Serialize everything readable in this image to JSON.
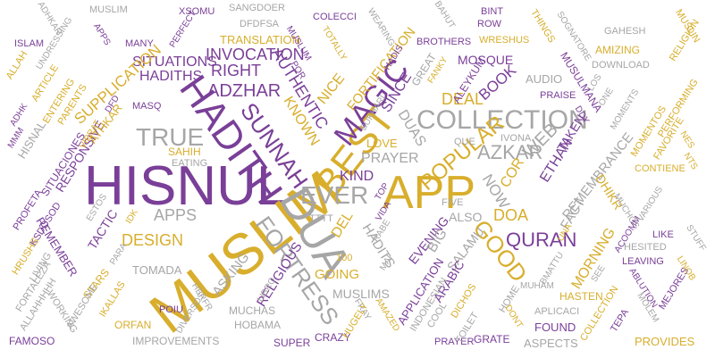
{
  "colors": {
    "gray": "#a6a6a6",
    "gold": "#d8ae2c",
    "purple": "#7a3f98"
  },
  "words": [
    {
      "id": "hisnul",
      "text": "HISNUL",
      "color": "purple"
    },
    {
      "id": "muslim-big",
      "text": "MUSLIM",
      "color": "gold"
    },
    {
      "id": "app-big",
      "text": "APP",
      "color": "gold"
    },
    {
      "id": "hadith",
      "text": "HADITH",
      "color": "purple"
    },
    {
      "id": "dua",
      "text": "DUA",
      "color": "gray"
    },
    {
      "id": "collection",
      "text": "COLLECTION",
      "color": "gray"
    },
    {
      "id": "best",
      "text": "BEST",
      "color": "gold"
    },
    {
      "id": "ever",
      "text": "EVER",
      "color": "gray"
    },
    {
      "id": "true",
      "text": "TRUE",
      "color": "gray"
    },
    {
      "id": "sunnah",
      "text": "SUNNAH",
      "color": "purple"
    },
    {
      "id": "magic",
      "text": "MAGIC",
      "color": "purple"
    },
    {
      "id": "fortress",
      "text": "FORTRESS",
      "color": "gray"
    },
    {
      "id": "azkar",
      "text": "AZKAR",
      "color": "gray"
    },
    {
      "id": "quran",
      "text": "QURAN",
      "color": "purple"
    },
    {
      "id": "good",
      "text": "GOOD",
      "color": "gold"
    },
    {
      "id": "popular",
      "text": "POPULAR",
      "color": "gold"
    },
    {
      "id": "design",
      "text": "DESIGN",
      "color": "gold"
    },
    {
      "id": "apps",
      "text": "APPS",
      "color": "gray"
    },
    {
      "id": "invocation",
      "text": "INVOCATION",
      "color": "purple"
    },
    {
      "id": "situations",
      "text": "SITUATIONS",
      "color": "purple"
    },
    {
      "id": "hadiths",
      "text": "HADITHS",
      "color": "purple"
    },
    {
      "id": "right",
      "text": "RIGHT",
      "color": "purple"
    },
    {
      "id": "adzhar",
      "text": "ADZHAR",
      "color": "purple"
    },
    {
      "id": "authentic",
      "text": "AUTHENTIC",
      "color": "purple"
    },
    {
      "id": "known",
      "text": "KNOWN",
      "color": "gold"
    },
    {
      "id": "nice",
      "text": "NICE",
      "color": "gold"
    },
    {
      "id": "fortification",
      "text": "FORTIFICATION",
      "color": "gold"
    },
    {
      "id": "supplication",
      "text": "SUPPLICATION",
      "color": "gold"
    },
    {
      "id": "translation",
      "text": "TRANSLATION",
      "color": "gold"
    },
    {
      "id": "mosque",
      "text": "MOSQUE",
      "color": "purple"
    },
    {
      "id": "book",
      "text": "BOOK",
      "color": "purple"
    },
    {
      "id": "deal",
      "text": "DEAL",
      "color": "gold"
    },
    {
      "id": "prayer",
      "text": "PRAYER",
      "color": "gray"
    },
    {
      "id": "kind",
      "text": "KIND",
      "color": "purple"
    },
    {
      "id": "love",
      "text": "LOVE",
      "color": "gold"
    },
    {
      "id": "duas",
      "text": "DUAS",
      "color": "gray"
    },
    {
      "id": "since",
      "text": "SINCE",
      "color": "purple"
    },
    {
      "id": "web",
      "text": "WEB",
      "color": "gray"
    },
    {
      "id": "ethan",
      "text": "ETHAN",
      "color": "purple"
    },
    {
      "id": "taken",
      "text": "TAKEN",
      "color": "purple"
    },
    {
      "id": "remembrance",
      "text": "REMEMBRANCE",
      "color": "gray"
    },
    {
      "id": "cor",
      "text": "COR",
      "color": "gold"
    },
    {
      "id": "now",
      "text": "NOW",
      "color": "gray"
    },
    {
      "id": "doa",
      "text": "DOA",
      "color": "gold"
    },
    {
      "id": "also",
      "text": "ALSO",
      "color": "gray"
    },
    {
      "id": "del",
      "text": "DEL",
      "color": "gold"
    },
    {
      "id": "muslims",
      "text": "MUSLIMS",
      "color": "gray"
    },
    {
      "id": "religious",
      "text": "RELIGIOUS",
      "color": "purple"
    },
    {
      "id": "going",
      "text": "GOING",
      "color": "gold"
    },
    {
      "id": "asking",
      "text": "ASKING",
      "color": "gray"
    },
    {
      "id": "evening",
      "text": "EVENING",
      "color": "purple"
    },
    {
      "id": "big",
      "text": "BIG",
      "color": "gray"
    },
    {
      "id": "salamu",
      "text": "SALAMU",
      "color": "gray"
    },
    {
      "id": "hadits",
      "text": "HADITS",
      "color": "gray"
    },
    {
      "id": "morning",
      "text": "MORNING",
      "color": "gold"
    },
    {
      "id": "fact",
      "text": "FACT",
      "color": "gray"
    },
    {
      "id": "dhikr",
      "text": "DHIKR",
      "color": "gold"
    },
    {
      "id": "tactic",
      "text": "TACTIC",
      "color": "purple"
    },
    {
      "id": "remember",
      "text": "REMEMBER",
      "color": "purple"
    },
    {
      "id": "responsive",
      "text": "RESPONSIVE",
      "color": "purple"
    },
    {
      "id": "hisnal",
      "text": "HISNAL",
      "color": "gray"
    },
    {
      "id": "situaciones",
      "text": "SITUACIONES",
      "color": "purple"
    },
    {
      "id": "athkar",
      "text": "ATHKAR",
      "color": "gold"
    },
    {
      "id": "sahih",
      "text": "SAHIH",
      "color": "gold"
    },
    {
      "id": "eating",
      "text": "EATING",
      "color": "gray"
    },
    {
      "id": "application",
      "text": "APPLICATION",
      "color": "purple"
    },
    {
      "id": "arabic",
      "text": "ARABIC",
      "color": "purple"
    },
    {
      "id": "hasten",
      "text": "HASTEN",
      "color": "gold"
    },
    {
      "id": "found",
      "text": "FOUND",
      "color": "purple"
    },
    {
      "id": "aspects",
      "text": "ASPECTS",
      "color": "gray"
    },
    {
      "id": "grate",
      "text": "GRATE",
      "color": "purple"
    },
    {
      "id": "provides",
      "text": "PROVIDES",
      "color": "gold"
    },
    {
      "id": "hobama",
      "text": "HOBAMA",
      "color": "gray"
    },
    {
      "id": "muchas",
      "text": "MUCHAS",
      "color": "gray"
    },
    {
      "id": "super",
      "text": "SUPER",
      "color": "purple"
    },
    {
      "id": "crazy",
      "text": "CRAZY",
      "color": "purple"
    },
    {
      "id": "improvements",
      "text": "IMPROVEMENTS",
      "color": "gray"
    },
    {
      "id": "famoso",
      "text": "FAMOSO",
      "color": "purple"
    },
    {
      "id": "orfan",
      "text": "ORFAN",
      "color": "gold"
    },
    {
      "id": "tomada",
      "text": "TOMADA",
      "color": "gray"
    },
    {
      "id": "stars",
      "text": "STARS",
      "color": "gold"
    },
    {
      "id": "muslim-top",
      "text": "MUSLIM",
      "color": "gray"
    },
    {
      "id": "xsomu",
      "text": "XSOMU",
      "color": "purple"
    },
    {
      "id": "sangdoer",
      "text": "SANGDOER",
      "color": "gray"
    },
    {
      "id": "dfdfsa",
      "text": "DFDFSA",
      "color": "gray"
    },
    {
      "id": "colecci",
      "text": "COLECCI",
      "color": "purple"
    },
    {
      "id": "bint",
      "text": "BINT",
      "color": "purple"
    },
    {
      "id": "row",
      "text": "ROW",
      "color": "purple"
    },
    {
      "id": "wreshus",
      "text": "WRESHUS",
      "color": "gold"
    },
    {
      "id": "brothers",
      "text": "BROTHERS",
      "color": "purple"
    },
    {
      "id": "things",
      "text": "THINGS",
      "color": "gold"
    },
    {
      "id": "gahesh",
      "text": "GAHESH",
      "color": "gray"
    },
    {
      "id": "amizing",
      "text": "AMIZING",
      "color": "gold"
    },
    {
      "id": "download",
      "text": "DOWNLOAD",
      "color": "gray"
    },
    {
      "id": "audio",
      "text": "AUDIO",
      "color": "gray"
    },
    {
      "id": "praise",
      "text": "PRAISE",
      "color": "purple"
    },
    {
      "id": "contiene",
      "text": "CONTIENE",
      "color": "gold"
    },
    {
      "id": "like",
      "text": "LIKE",
      "color": "purple"
    },
    {
      "id": "leaving",
      "text": "LEAVING",
      "color": "purple"
    },
    {
      "id": "hesited",
      "text": "HESITED",
      "color": "gray"
    },
    {
      "id": "aplicaci",
      "text": "APLICACI",
      "color": "gray"
    },
    {
      "id": "islam",
      "text": "ISLAM",
      "color": "purple"
    },
    {
      "id": "many",
      "text": "MANY",
      "color": "purple"
    },
    {
      "id": "masq",
      "text": "MASQ",
      "color": "purple"
    },
    {
      "id": "prayer-small",
      "text": "PRAYER",
      "color": "purple"
    },
    {
      "id": "toilet",
      "text": "TOILET",
      "color": "gray"
    },
    {
      "id": "cool",
      "text": "COOL",
      "color": "gray"
    },
    {
      "id": "home",
      "text": "HOME",
      "color": "gray"
    },
    {
      "id": "que",
      "text": "QUE",
      "color": "gray"
    },
    {
      "id": "ivona",
      "text": "IVONA",
      "color": "gray"
    },
    {
      "id": "five",
      "text": "FIVE",
      "color": "gray"
    },
    {
      "id": "tttt",
      "text": "TTTT",
      "color": "gray"
    },
    {
      "id": "num-100",
      "text": "100",
      "color": "gold"
    },
    {
      "id": "poiu",
      "text": "POIU",
      "color": "purple"
    },
    {
      "id": "ikallas",
      "text": "IKALLAS",
      "color": "gold"
    },
    {
      "id": "profeta",
      "text": "PROFETA",
      "color": "purple"
    },
    {
      "id": "ksdosod",
      "text": "KSDOSOD",
      "color": "purple"
    },
    {
      "id": "hrushs",
      "text": "HRUSHS",
      "color": "gold"
    },
    {
      "id": "living",
      "text": "LIVING",
      "color": "gray"
    },
    {
      "id": "fortaleza",
      "text": "FORTALEZA",
      "color": "gray"
    },
    {
      "id": "allahhhhh",
      "text": "ALLAHHHHH",
      "color": "gray"
    },
    {
      "id": "working",
      "text": "WORKING",
      "color": "gray"
    },
    {
      "id": "awesome",
      "text": "AWESOME",
      "color": "gray"
    },
    {
      "id": "adhkar",
      "text": "ADHKAR",
      "color": "gray"
    },
    {
      "id": "undressing",
      "text": "UNDRESSING",
      "color": "gray"
    },
    {
      "id": "allah",
      "text": "ALLAH",
      "color": "gold"
    },
    {
      "id": "article",
      "text": "ARTICLE",
      "color": "gold"
    },
    {
      "id": "entering",
      "text": "ENTERING",
      "color": "gold"
    },
    {
      "id": "parents",
      "text": "PARENTS",
      "color": "gold"
    },
    {
      "id": "adhk",
      "text": "ADHK",
      "color": "purple"
    },
    {
      "id": "mmm",
      "text": "MMM",
      "color": "purple"
    },
    {
      "id": "vibrat",
      "text": "VIBRAT",
      "color": "gold"
    },
    {
      "id": "dfd",
      "text": "DFD",
      "color": "purple"
    },
    {
      "id": "estos",
      "text": "ESTOS",
      "color": "gray"
    },
    {
      "id": "idk",
      "text": "IDK",
      "color": "gold"
    },
    {
      "id": "para",
      "text": "PARA",
      "color": "gray"
    },
    {
      "id": "hbrfr",
      "text": "HBRFR",
      "color": "gray"
    },
    {
      "id": "libro",
      "text": "LIBRO",
      "color": "gray"
    },
    {
      "id": "diversos",
      "text": "DIVERSOS",
      "color": "gray"
    },
    {
      "id": "rabe",
      "text": "RABE",
      "color": "gray"
    },
    {
      "id": "vida",
      "text": "VIDA",
      "color": "purple"
    },
    {
      "id": "mai",
      "text": "MAI",
      "color": "gray"
    },
    {
      "id": "fray",
      "text": "FRAY",
      "color": "gray"
    },
    {
      "id": "amazed",
      "text": "AMAZED",
      "color": "gold"
    },
    {
      "id": "hugely",
      "text": "HUGELY",
      "color": "gold"
    },
    {
      "id": "indonesian",
      "text": "INDONESIAN",
      "color": "gray"
    },
    {
      "id": "dichos",
      "text": "DICHOS",
      "color": "gold"
    },
    {
      "id": "muham",
      "text": "MUHAM",
      "color": "gray"
    },
    {
      "id": "bmattu",
      "text": "BMATTU",
      "color": "gray"
    },
    {
      "id": "dont",
      "text": "DONT",
      "color": "gold"
    },
    {
      "id": "una",
      "text": "UNA",
      "color": "gold"
    },
    {
      "id": "muchos",
      "text": "MUCHOS",
      "color": "gray"
    },
    {
      "id": "see",
      "text": "SEE",
      "color": "gray"
    },
    {
      "id": "acoomm",
      "text": "ACOOMM",
      "color": "purple"
    },
    {
      "id": "ablution",
      "text": "ABLUTION",
      "color": "purple"
    },
    {
      "id": "collection-small",
      "text": "COLLECTION",
      "color": "gold"
    },
    {
      "id": "tepa",
      "text": "TEPA",
      "color": "purple"
    },
    {
      "id": "molem",
      "text": "MOLEM",
      "color": "gray"
    },
    {
      "id": "mejores",
      "text": "MEJORES",
      "color": "purple"
    },
    {
      "id": "linob",
      "text": "LINOB",
      "color": "gold"
    },
    {
      "id": "stuff",
      "text": "STUFF",
      "color": "gray"
    },
    {
      "id": "various",
      "text": "VARIOUS",
      "color": "gray"
    },
    {
      "id": "favorite",
      "text": "FAVORITE",
      "color": "gold"
    },
    {
      "id": "momentos",
      "text": "MOMENTOS",
      "color": "gold"
    },
    {
      "id": "performing",
      "text": "PERFORMING",
      "color": "gold"
    },
    {
      "id": "moments",
      "text": "MOMENTS",
      "color": "gray"
    },
    {
      "id": "one",
      "text": "ONE",
      "color": "gray"
    },
    {
      "id": "los",
      "text": "LOS",
      "color": "gray"
    },
    {
      "id": "nes",
      "text": "NES",
      "color": "gold"
    },
    {
      "id": "nts",
      "text": "NTS",
      "color": "gold"
    },
    {
      "id": "ddy",
      "text": "DDY",
      "color": "purple"
    },
    {
      "id": "musulmana",
      "text": "MUSULMANA",
      "color": "purple"
    },
    {
      "id": "sognatore",
      "text": "SOGNATORE",
      "color": "gray"
    },
    {
      "id": "muslin",
      "text": "MUSLIN",
      "color": "gold"
    },
    {
      "id": "religion",
      "text": "RELIGION",
      "color": "gold"
    },
    {
      "id": "bahut",
      "text": "BAHUT",
      "color": "gray"
    },
    {
      "id": "aleykum",
      "text": "ALEYKUM",
      "color": "purple"
    },
    {
      "id": "great",
      "text": "GREAT",
      "color": "gray"
    },
    {
      "id": "fanky",
      "text": "FANKY",
      "color": "gold"
    },
    {
      "id": "hadis",
      "text": "HADIS",
      "color": "purple"
    },
    {
      "id": "bukhari",
      "text": "BUKHARI",
      "color": "gray"
    },
    {
      "id": "wearing",
      "text": "WEARING",
      "color": "gray"
    },
    {
      "id": "totally",
      "text": "TOTALLY",
      "color": "gold"
    },
    {
      "id": "muslum",
      "text": "MUSLUM",
      "color": "purple"
    },
    {
      "id": "por",
      "text": "POR",
      "color": "purple"
    },
    {
      "id": "perfect",
      "text": "PERFECT",
      "color": "purple"
    },
    {
      "id": "apps-small",
      "text": "APPS",
      "color": "purple"
    },
    {
      "id": "top",
      "text": "TOP",
      "color": "purple"
    }
  ]
}
